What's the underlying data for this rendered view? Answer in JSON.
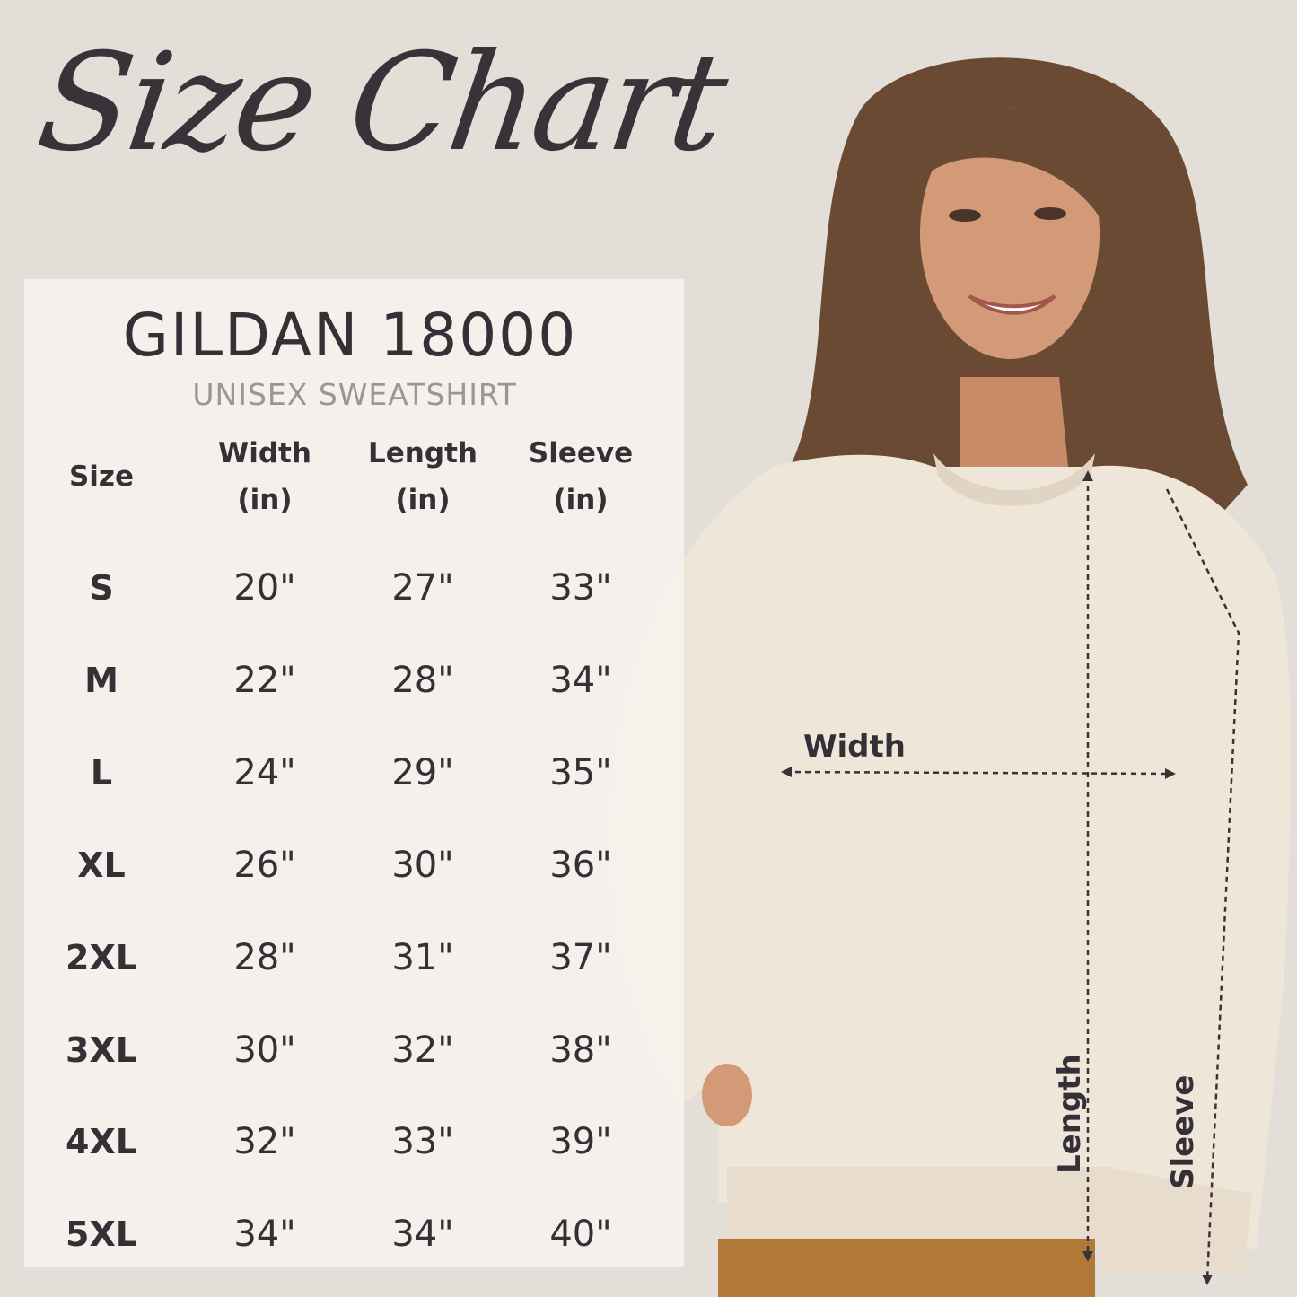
{
  "title": "Size Chart",
  "brand": "GILDAN 18000",
  "subtitle": "UNISEX SWEATSHIRT",
  "table": {
    "headers": [
      "Size",
      "Width (in)",
      "Length (in)",
      "Sleeve (in)"
    ],
    "header_lines": [
      [
        "Size"
      ],
      [
        "Width",
        "(in)"
      ],
      [
        "Length",
        "(in)"
      ],
      [
        "Sleeve",
        "(in)"
      ]
    ],
    "rows": [
      [
        "S",
        "20\"",
        "27\"",
        "33\""
      ],
      [
        "M",
        "22\"",
        "28\"",
        "34\""
      ],
      [
        "L",
        "24\"",
        "29\"",
        "35\""
      ],
      [
        "XL",
        "26\"",
        "30\"",
        "36\""
      ],
      [
        "2XL",
        "28\"",
        "31\"",
        "37\""
      ],
      [
        "3XL",
        "30\"",
        "32\"",
        "38\""
      ],
      [
        "4XL",
        "32\"",
        "33\"",
        "39\""
      ],
      [
        "5XL",
        "34\"",
        "34\"",
        "40\""
      ]
    ]
  },
  "measurements": {
    "width": "Width",
    "length": "Length",
    "sleeve": "Sleeve"
  },
  "colors": {
    "background": "#e4ded8",
    "panel": "#f5f2ed",
    "text": "#352f36",
    "subtitle": "#9b9597",
    "sweatshirt": "#efe6da",
    "hair": "#6b4a33",
    "pants": "#b07a36"
  }
}
